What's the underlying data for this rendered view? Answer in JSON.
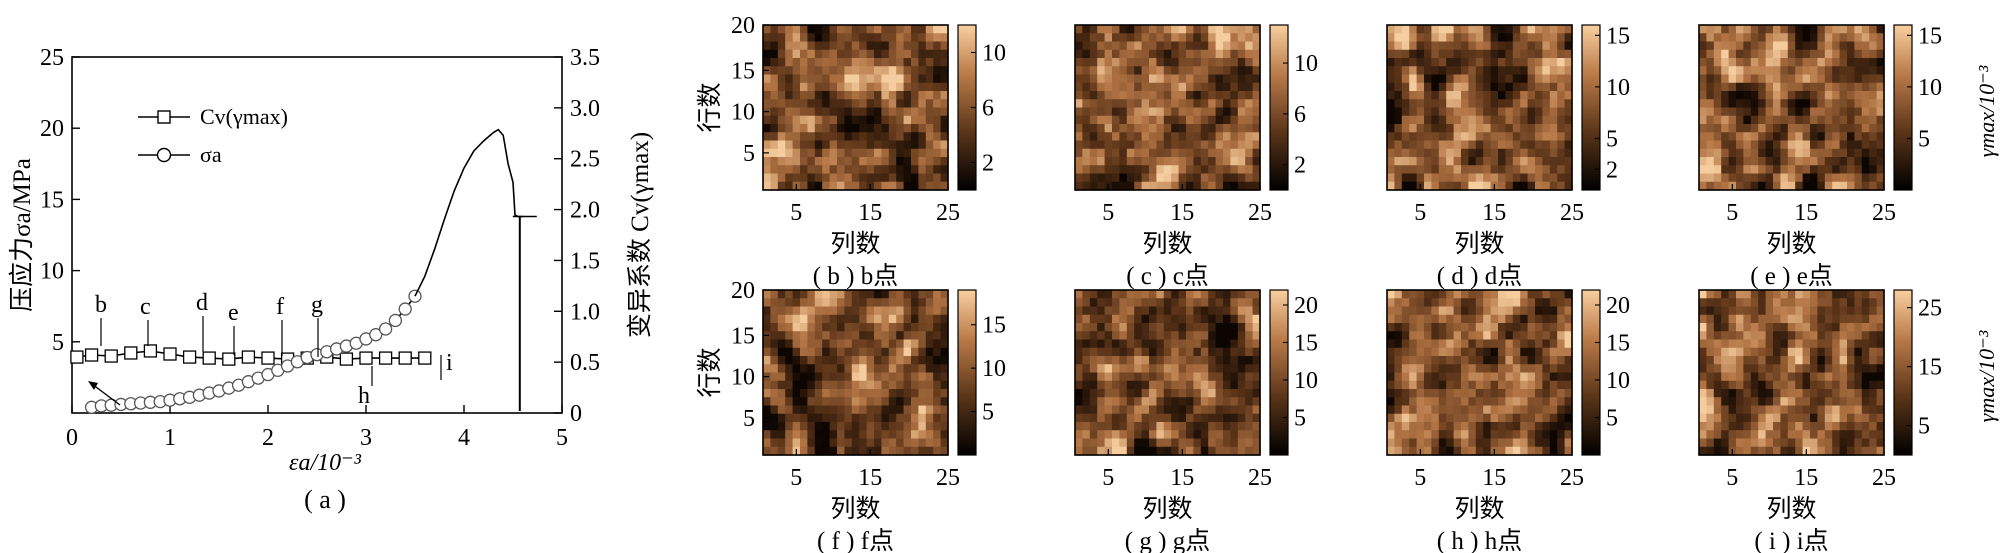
{
  "chart_data": [
    {
      "type": "line",
      "panel": "(a)",
      "caption": "( a )",
      "xlabel": "εa/10⁻³",
      "ylabel_left": "压应力σa/MPa",
      "ylabel_right": "变异系数 Cv(γmax)",
      "xlim": [
        0,
        5
      ],
      "x_ticks": [
        "0",
        "1",
        "2",
        "3",
        "4",
        "5"
      ],
      "ylim_left": [
        0,
        25
      ],
      "y_ticks_left": [
        "5",
        "10",
        "15",
        "20",
        "25"
      ],
      "ylim_right": [
        0,
        3.5
      ],
      "y_ticks_right": [
        "0",
        "0.5",
        "1.0",
        "1.5",
        "2.0",
        "2.5",
        "3.0",
        "3.5"
      ],
      "legend_position": "top-left",
      "series": [
        {
          "name": "Cv(γmax)",
          "axis": "right",
          "marker": "square",
          "x": [
            0.05,
            0.2,
            0.4,
            0.6,
            0.8,
            1.0,
            1.2,
            1.4,
            1.6,
            1.8,
            2.0,
            2.2,
            2.4,
            2.6,
            2.8,
            3.0,
            3.2,
            3.4,
            3.6
          ],
          "y": [
            0.55,
            0.57,
            0.56,
            0.59,
            0.61,
            0.58,
            0.55,
            0.54,
            0.53,
            0.55,
            0.54,
            0.53,
            0.54,
            0.55,
            0.53,
            0.54,
            0.54,
            0.54,
            0.54
          ]
        },
        {
          "name": "σa",
          "axis": "left",
          "marker": "circle",
          "x": [
            0.2,
            0.3,
            0.4,
            0.5,
            0.6,
            0.7,
            0.8,
            0.9,
            1.0,
            1.1,
            1.2,
            1.3,
            1.4,
            1.5,
            1.6,
            1.7,
            1.8,
            1.9,
            2.0,
            2.1,
            2.2,
            2.3,
            2.4,
            2.5,
            2.6,
            2.7,
            2.8,
            2.9,
            3.0,
            3.1,
            3.2,
            3.3,
            3.4,
            3.5
          ],
          "y": [
            0.4,
            0.5,
            0.55,
            0.6,
            0.65,
            0.7,
            0.75,
            0.8,
            0.9,
            1.0,
            1.1,
            1.25,
            1.4,
            1.55,
            1.75,
            1.95,
            2.2,
            2.45,
            2.7,
            3.0,
            3.3,
            3.6,
            3.9,
            4.1,
            4.3,
            4.5,
            4.7,
            4.9,
            5.2,
            5.5,
            5.9,
            6.5,
            7.3,
            8.2
          ]
        },
        {
          "name": "",
          "axis": "left",
          "marker": "none",
          "x": [
            3.5,
            3.6,
            3.7,
            3.8,
            3.9,
            4.0,
            4.1,
            4.2,
            4.3,
            4.35,
            4.4,
            4.45,
            4.5,
            4.52,
            4.55,
            4.58,
            4.6
          ],
          "y": [
            8.2,
            9.6,
            11.5,
            13.6,
            15.6,
            17.2,
            18.4,
            19.1,
            19.7,
            19.9,
            19.5,
            17.5,
            16.2,
            13.9,
            13.8,
            13.8,
            13.8
          ]
        }
      ],
      "annotations": [
        "b",
        "c",
        "d",
        "e",
        "f",
        "g",
        "h",
        "i"
      ]
    },
    {
      "type": "heatmap",
      "panel": "(b)",
      "caption": "( b ) b点",
      "xlabel": "列数",
      "ylabel": "行数",
      "x_ticks": [
        "5",
        "15",
        "25"
      ],
      "y_ticks": [
        "5",
        "10",
        "15",
        "20"
      ],
      "colorbar_ticks": [
        "2",
        "6",
        "10"
      ],
      "colorbar_range": [
        0,
        12
      ],
      "colorbar_label": ""
    },
    {
      "type": "heatmap",
      "panel": "(c)",
      "caption": "( c ) c点",
      "xlabel": "列数",
      "ylabel": "",
      "x_ticks": [
        "5",
        "15",
        "25"
      ],
      "y_ticks": [],
      "colorbar_ticks": [
        "2",
        "6",
        "10"
      ],
      "colorbar_range": [
        0,
        13
      ],
      "colorbar_label": ""
    },
    {
      "type": "heatmap",
      "panel": "(d)",
      "caption": "( d ) d点",
      "xlabel": "列数",
      "ylabel": "",
      "x_ticks": [
        "5",
        "15",
        "25"
      ],
      "y_ticks": [],
      "colorbar_ticks": [
        "2",
        "5",
        "10",
        "15"
      ],
      "colorbar_range": [
        0,
        16
      ],
      "colorbar_label": ""
    },
    {
      "type": "heatmap",
      "panel": "(e)",
      "caption": "( e ) e点",
      "xlabel": "列数",
      "ylabel": "",
      "x_ticks": [
        "5",
        "15",
        "25"
      ],
      "y_ticks": [],
      "colorbar_ticks": [
        "5",
        "10",
        "15"
      ],
      "colorbar_range": [
        0,
        16
      ],
      "colorbar_label": "γmax/10⁻³"
    },
    {
      "type": "heatmap",
      "panel": "(f)",
      "caption": "( f ) f点",
      "xlabel": "列数",
      "ylabel": "行数",
      "x_ticks": [
        "5",
        "15",
        "25"
      ],
      "y_ticks": [
        "5",
        "10",
        "15",
        "20"
      ],
      "colorbar_ticks": [
        "5",
        "10",
        "15"
      ],
      "colorbar_range": [
        0,
        19
      ],
      "colorbar_label": ""
    },
    {
      "type": "heatmap",
      "panel": "(g)",
      "caption": "( g ) g点",
      "xlabel": "列数",
      "ylabel": "",
      "x_ticks": [
        "5",
        "15",
        "25"
      ],
      "y_ticks": [],
      "colorbar_ticks": [
        "5",
        "10",
        "15",
        "20"
      ],
      "colorbar_range": [
        0,
        22
      ],
      "colorbar_label": ""
    },
    {
      "type": "heatmap",
      "panel": "(h)",
      "caption": "( h ) h点",
      "xlabel": "列数",
      "ylabel": "",
      "x_ticks": [
        "5",
        "15",
        "25"
      ],
      "y_ticks": [],
      "colorbar_ticks": [
        "5",
        "10",
        "15",
        "20"
      ],
      "colorbar_range": [
        0,
        22
      ],
      "colorbar_label": ""
    },
    {
      "type": "heatmap",
      "panel": "(i)",
      "caption": "( i ) i点",
      "xlabel": "列数",
      "ylabel": "",
      "x_ticks": [
        "5",
        "15",
        "25"
      ],
      "y_ticks": [],
      "colorbar_ticks": [
        "5",
        "15",
        "25"
      ],
      "colorbar_range": [
        0,
        28
      ],
      "colorbar_label": "γmax/10⁻³"
    }
  ],
  "colors": {
    "heat_dark": "#1a0c04",
    "heat_mid": "#8a5530",
    "heat_light": "#f6c89a",
    "line": "#000000"
  }
}
